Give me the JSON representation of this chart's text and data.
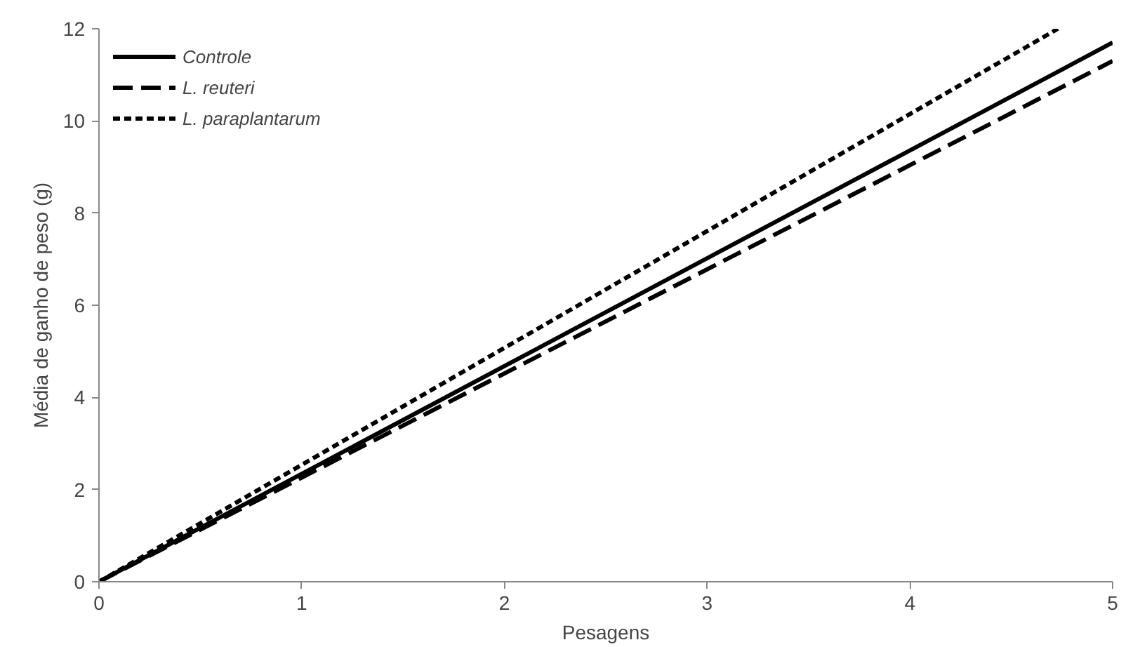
{
  "chart_data": {
    "type": "line",
    "xlabel": "Pesagens",
    "ylabel": "Média de ganho de peso (g)",
    "xlim": [
      0,
      5
    ],
    "ylim": [
      0,
      12
    ],
    "xticks": [
      0,
      1,
      2,
      3,
      4,
      5
    ],
    "yticks": [
      0,
      2,
      4,
      6,
      8,
      10,
      12
    ],
    "grid": false,
    "legend": "top left",
    "marker": "none",
    "series": [
      {
        "name": "Controle",
        "color": "#000000",
        "line_style": "solid",
        "x": [
          0,
          5
        ],
        "values": [
          0,
          11.7
        ]
      },
      {
        "name": "L. reuteri",
        "color": "#000000",
        "line_style": "dashed",
        "x": [
          0,
          5
        ],
        "values": [
          0,
          11.3
        ]
      },
      {
        "name": "L. paraplantarum",
        "color": "#000000",
        "line_style": "dotted",
        "x": [
          0,
          4.73
        ],
        "values": [
          0,
          12
        ]
      }
    ]
  }
}
